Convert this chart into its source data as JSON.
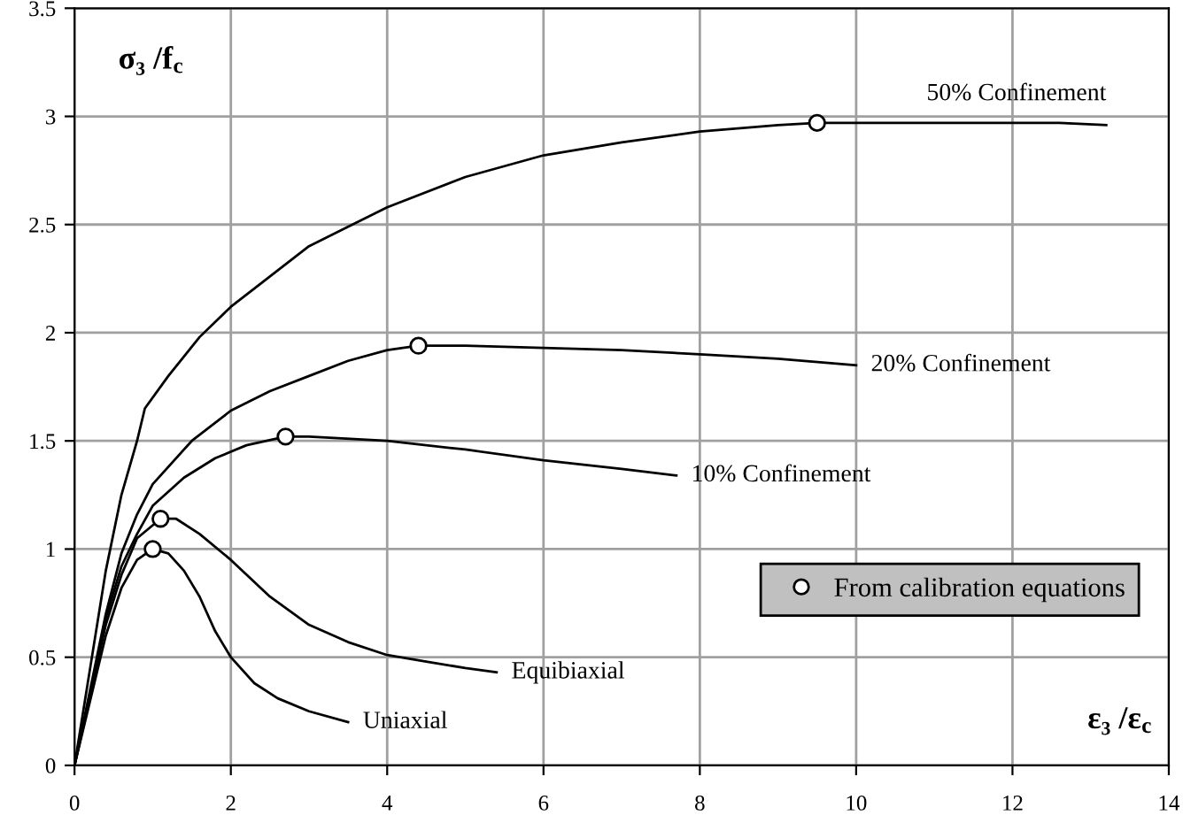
{
  "chart_data": {
    "type": "line",
    "xlabel": "ε₃ /ε$_{c}$",
    "ylabel": "σ₃ /f$_{c}$",
    "xlim": [
      0,
      14
    ],
    "xticks": [
      0,
      2,
      4,
      6,
      8,
      10,
      12,
      14
    ],
    "ylim": [
      0,
      3.5
    ],
    "yticks": [
      0,
      0.5,
      1,
      1.5,
      2,
      2.5,
      3,
      3.5
    ],
    "grid": true,
    "legend": "bottom right",
    "marker": "none",
    "line_style": "solid",
    "series": [
      {
        "name": "50% Confinement",
        "color": "#000000",
        "x": [
          0,
          0.2,
          0.4,
          0.6,
          0.8,
          0.9,
          1.2,
          1.6,
          2,
          3,
          4,
          5,
          6,
          7,
          8,
          9,
          9.5,
          11,
          12.6,
          13.2
        ],
        "values": [
          0,
          0.45,
          0.9,
          1.25,
          1.5,
          1.65,
          1.8,
          1.98,
          2.12,
          2.4,
          2.58,
          2.72,
          2.82,
          2.88,
          2.93,
          2.96,
          2.97,
          2.97,
          2.97,
          2.96
        ]
      },
      {
        "name": "20% Confinement",
        "color": "#000000",
        "x": [
          0,
          0.2,
          0.4,
          0.6,
          0.8,
          1,
          1.5,
          2,
          2.5,
          3,
          3.5,
          4,
          4.4,
          5,
          6,
          7,
          8,
          9,
          10
        ],
        "values": [
          0,
          0.35,
          0.7,
          0.98,
          1.16,
          1.3,
          1.5,
          1.64,
          1.73,
          1.8,
          1.87,
          1.92,
          1.94,
          1.94,
          1.93,
          1.92,
          1.9,
          1.88,
          1.85
        ]
      },
      {
        "name": "10% Confinement",
        "color": "#000000",
        "x": [
          0,
          0.2,
          0.4,
          0.6,
          0.8,
          1,
          1.4,
          1.8,
          2.2,
          2.7,
          3,
          4,
          5,
          6,
          7,
          7.7
        ],
        "values": [
          0,
          0.33,
          0.68,
          0.92,
          1.07,
          1.2,
          1.33,
          1.42,
          1.48,
          1.52,
          1.52,
          1.5,
          1.46,
          1.41,
          1.37,
          1.34
        ]
      },
      {
        "name": "Equibiaxial",
        "color": "#000000",
        "x": [
          0,
          0.2,
          0.4,
          0.6,
          0.8,
          1.1,
          1.3,
          1.6,
          2,
          2.5,
          3,
          3.5,
          4,
          4.5,
          5,
          5.4
        ],
        "values": [
          0,
          0.32,
          0.65,
          0.88,
          1.05,
          1.14,
          1.14,
          1.07,
          0.95,
          0.78,
          0.65,
          0.57,
          0.51,
          0.48,
          0.45,
          0.43
        ]
      },
      {
        "name": "Uniaxial",
        "color": "#000000",
        "x": [
          0,
          0.2,
          0.4,
          0.6,
          0.8,
          1,
          1.2,
          1.4,
          1.6,
          1.8,
          2,
          2.3,
          2.6,
          3,
          3.5
        ],
        "values": [
          0,
          0.3,
          0.6,
          0.82,
          0.95,
          1.0,
          0.98,
          0.9,
          0.78,
          0.62,
          0.5,
          0.38,
          0.31,
          0.25,
          0.2
        ]
      },
      {
        "name": "From calibration equations",
        "type": "scatter",
        "marker": "circle",
        "color": "#000000",
        "x": [
          1,
          1.1,
          2.7,
          4.4,
          9.5
        ],
        "values": [
          1.0,
          1.14,
          1.52,
          1.94,
          2.97
        ]
      }
    ]
  }
}
